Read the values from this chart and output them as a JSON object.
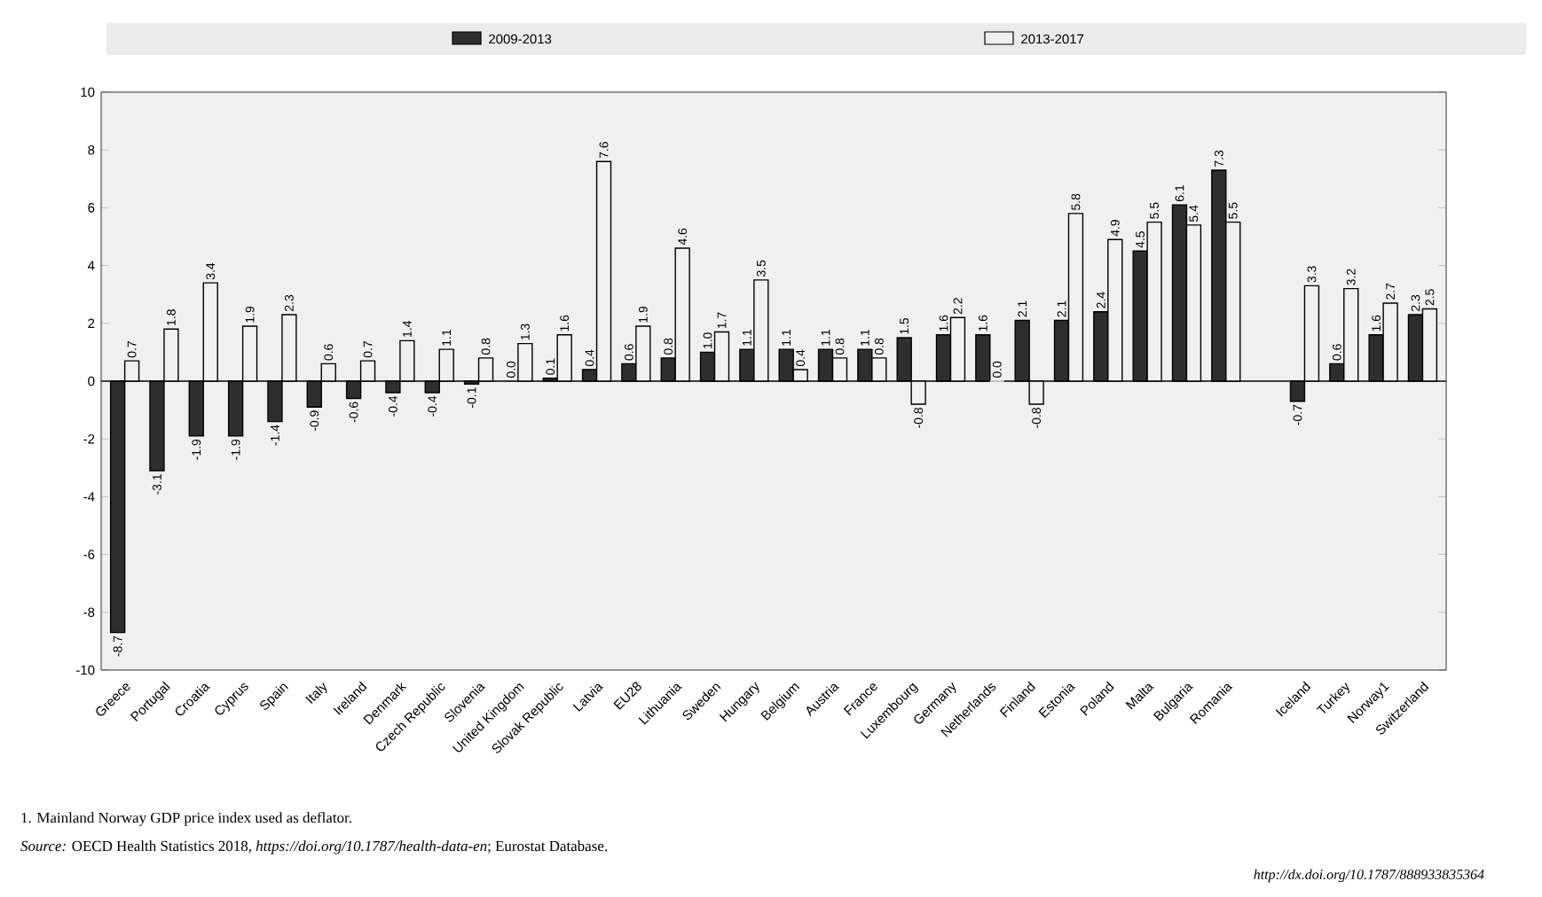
{
  "chart_data": {
    "type": "bar",
    "categories": [
      "Greece",
      "Portugal",
      "Croatia",
      "Cyprus",
      "Spain",
      "Italy",
      "Ireland",
      "Denmark",
      "Czech Republic",
      "Slovenia",
      "United Kingdom",
      "Slovak Republic",
      "Latvia",
      "EU28",
      "Lithuania",
      "Sweden",
      "Hungary",
      "Belgium",
      "Austria",
      "France",
      "Luxembourg",
      "Germany",
      "Netherlands",
      "Finland",
      "Estonia",
      "Poland",
      "Malta",
      "Bulgaria",
      "Romania",
      null,
      "Iceland",
      "Turkey",
      "Norway1",
      "Switzerland"
    ],
    "series": [
      {
        "name": "2009-2013",
        "color": "#2e2e2e",
        "values": [
          -8.7,
          -3.1,
          -1.9,
          -1.9,
          -1.4,
          -0.9,
          -0.6,
          -0.4,
          -0.4,
          -0.1,
          0.0,
          0.1,
          0.4,
          0.6,
          0.8,
          1.0,
          1.1,
          1.1,
          1.1,
          1.1,
          1.5,
          1.6,
          1.6,
          2.1,
          2.1,
          2.4,
          4.5,
          6.1,
          7.3,
          null,
          -0.7,
          0.6,
          1.6,
          2.3
        ],
        "value_labels": [
          "-8.7",
          "-3.1",
          "-1.9",
          "-1.9",
          "-1.4",
          "-0.9",
          "-0.6",
          "-0.4",
          "-0.4",
          "-0.1",
          "0.0",
          "0.1",
          "0.4",
          "0.6",
          "0.8",
          "1.0",
          "1.1",
          "1.1",
          "1.1",
          "1.1",
          "1.5",
          "1.6",
          "1.6",
          "2.1",
          "2.1",
          "2.4",
          "4.5",
          "6.1",
          "7.3",
          null,
          "-0.7",
          "0.6",
          "1.6",
          "2.3"
        ]
      },
      {
        "name": "2013-2017",
        "color": "#f0f0f0",
        "values": [
          0.7,
          1.8,
          3.4,
          1.9,
          2.3,
          0.6,
          0.7,
          1.4,
          1.1,
          0.8,
          1.3,
          1.6,
          7.6,
          1.9,
          4.6,
          1.7,
          3.5,
          0.4,
          0.8,
          0.8,
          -0.8,
          2.2,
          0.0,
          -0.8,
          5.8,
          4.9,
          5.5,
          5.4,
          5.5,
          null,
          3.3,
          3.2,
          2.7,
          2.5
        ],
        "value_labels": [
          "0.7",
          "1.8",
          "3.4",
          "1.9",
          "2.3",
          "0.6",
          "0.7",
          "1.4",
          "1.1",
          "0.8",
          "1.3",
          "1.6",
          "7.6",
          "1.9",
          "4.6",
          "1.7",
          "3.5",
          "0.4",
          "0.8",
          "0.8",
          "-0.8",
          "2.2",
          "0.0",
          "-0.8",
          "5.8",
          "4.9",
          "5.5",
          "5.4",
          "5.5",
          null,
          "3.3",
          "3.2",
          "2.7",
          "2.5"
        ]
      }
    ],
    "ylim": [
      -10,
      10
    ],
    "yticks": [
      -10,
      -8,
      -6,
      -4,
      -2,
      0,
      2,
      4,
      6,
      8,
      10
    ],
    "legend": "top",
    "annotations": [
      "1. Mainland Norway GDP price index used as deflator.",
      "*Source:* OECD Health Statistics 2018, *https://doi.org/10.1787/health-data-en*; Eurostat Database.",
      "*http://dx.doi.org/10.1787/888933835364*"
    ]
  }
}
